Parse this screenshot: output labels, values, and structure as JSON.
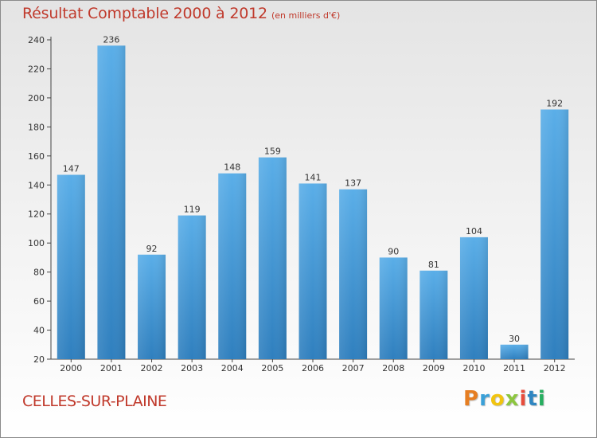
{
  "header": {
    "title": "Résultat Comptable 2000 à 2012",
    "subtitle": "(en milliers d'€)"
  },
  "footer": {
    "commune": "CELLES-SUR-PLAINE",
    "logo_letters": [
      {
        "char": "P",
        "color": "#e67e22"
      },
      {
        "char": "r",
        "color": "#3aa0d8"
      },
      {
        "char": "o",
        "color": "#f1c40f"
      },
      {
        "char": "x",
        "color": "#8cc63f"
      },
      {
        "char": "i",
        "color": "#e74c3c"
      },
      {
        "char": "t",
        "color": "#2e86c1"
      },
      {
        "char": "i",
        "color": "#27ae60"
      }
    ]
  },
  "colors": {
    "bar_light": "#5aaee8",
    "bar_dark": "#2f7fbe",
    "text": "#333333",
    "accent": "#c0392b"
  },
  "chart_data": {
    "type": "bar",
    "title": "Résultat Comptable 2000 à 2012",
    "subtitle": "(en milliers d'€)",
    "xlabel": "",
    "ylabel": "",
    "categories": [
      "2000",
      "2001",
      "2002",
      "2003",
      "2004",
      "2005",
      "2006",
      "2007",
      "2008",
      "2009",
      "2010",
      "2011",
      "2012"
    ],
    "values": [
      147,
      236,
      92,
      119,
      148,
      159,
      141,
      137,
      90,
      81,
      104,
      30,
      192
    ],
    "ylim": [
      20,
      240
    ],
    "yticks": [
      20,
      40,
      60,
      80,
      100,
      120,
      140,
      160,
      180,
      200,
      220,
      240
    ],
    "grid": false,
    "data_labels": true
  }
}
